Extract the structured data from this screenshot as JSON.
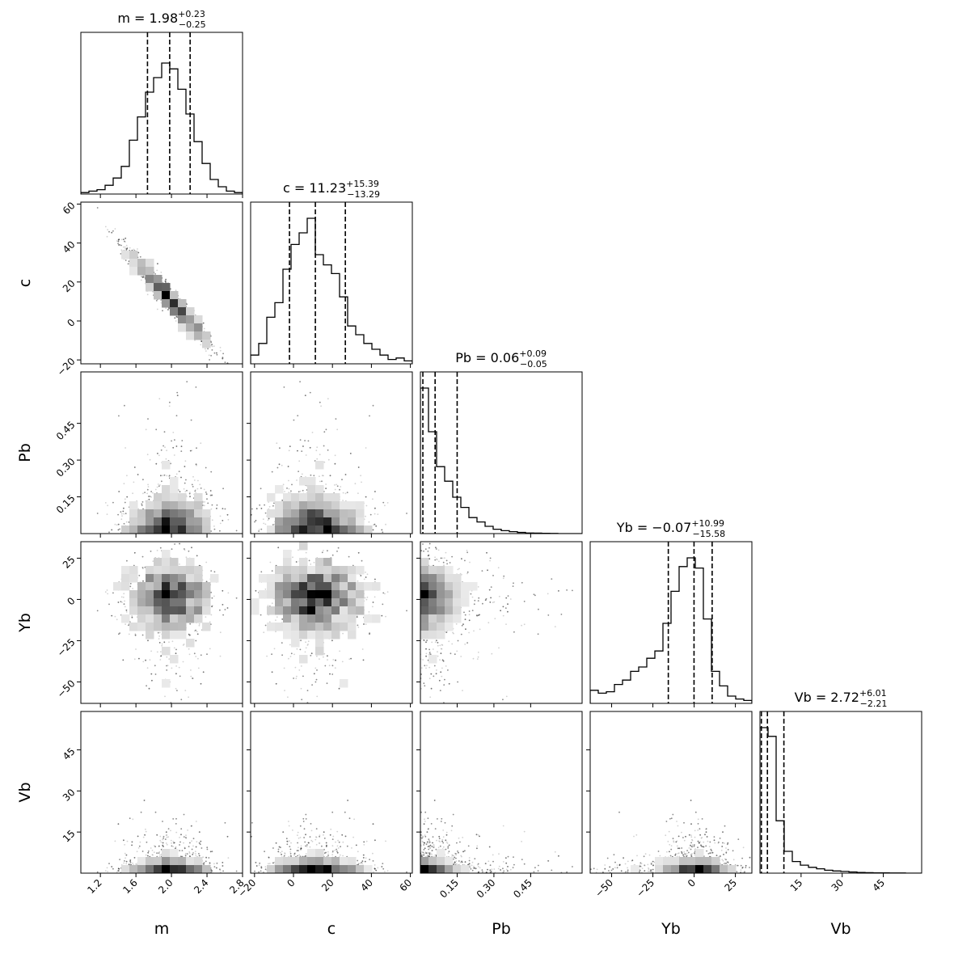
{
  "chart_data": {
    "type": "corner",
    "params": [
      "m",
      "c",
      "Pb",
      "Yb",
      "Vb"
    ],
    "ranges": [
      [
        0.98,
        2.8
      ],
      [
        -22,
        61
      ],
      [
        0,
        0.66
      ],
      [
        -63,
        35
      ],
      [
        0,
        59
      ]
    ],
    "ticks": [
      [
        "1.2",
        "1.6",
        "2.0",
        "2.4",
        "2.8"
      ],
      [
        "−20",
        "0",
        "20",
        "40",
        "60"
      ],
      [
        "0.15",
        "0.30",
        "0.45"
      ],
      [
        "−50",
        "−25",
        "0",
        "25"
      ],
      [
        "15",
        "30",
        "45"
      ]
    ],
    "tick_values": [
      [
        1.2,
        1.6,
        2.0,
        2.4,
        2.8
      ],
      [
        -20,
        0,
        20,
        40,
        60
      ],
      [
        0.15,
        0.3,
        0.45
      ],
      [
        -50,
        -25,
        0,
        25
      ],
      [
        15,
        30,
        45
      ]
    ],
    "titles": [
      {
        "base": "m = 1.98",
        "plus": "+0.23",
        "minus": "−0.25"
      },
      {
        "base": "c = 11.23",
        "plus": "+15.39",
        "minus": "−13.29"
      },
      {
        "base": "Pb = 0.06",
        "plus": "+0.09",
        "minus": "−0.05"
      },
      {
        "base": "Yb = −0.07",
        "plus": "+10.99",
        "minus": "−15.58"
      },
      {
        "base": "Vb = 2.72",
        "plus": "+6.01",
        "minus": "−2.21"
      }
    ],
    "quantiles": [
      [
        1.73,
        1.98,
        2.21
      ],
      [
        -2.06,
        11.23,
        26.62
      ],
      [
        0.01,
        0.06,
        0.15
      ],
      [
        -15.65,
        -0.07,
        10.92
      ],
      [
        0.51,
        2.72,
        8.73
      ]
    ],
    "histograms": [
      [
        1,
        2,
        3,
        6,
        11,
        19,
        37,
        53,
        70,
        80,
        90,
        86,
        72,
        55,
        36,
        21,
        10,
        5,
        2,
        1
      ],
      [
        6,
        14,
        32,
        42,
        65,
        82,
        90,
        100,
        75,
        68,
        62,
        46,
        26,
        20,
        14,
        10,
        6,
        3,
        4,
        2
      ],
      [
        100,
        70,
        46,
        36,
        25,
        18,
        11,
        8,
        5,
        3,
        2,
        1.3,
        0.8,
        0.4,
        0.3,
        0.2,
        0.1,
        0,
        0,
        0
      ],
      [
        9,
        7,
        8,
        13,
        16,
        22,
        25,
        31,
        36,
        55,
        77,
        94,
        100,
        93,
        58,
        22,
        12,
        5,
        3,
        2
      ],
      [
        100,
        94,
        36,
        15,
        8,
        5.5,
        4,
        3,
        2,
        1.5,
        1.2,
        0.8,
        0.5,
        0.3,
        0.2,
        0.2,
        0.1,
        0.1,
        0,
        0
      ]
    ],
    "axis_labels": [
      "m",
      "c",
      "Pb",
      "Yb",
      "Vb"
    ],
    "grid": false,
    "legend": "none"
  }
}
